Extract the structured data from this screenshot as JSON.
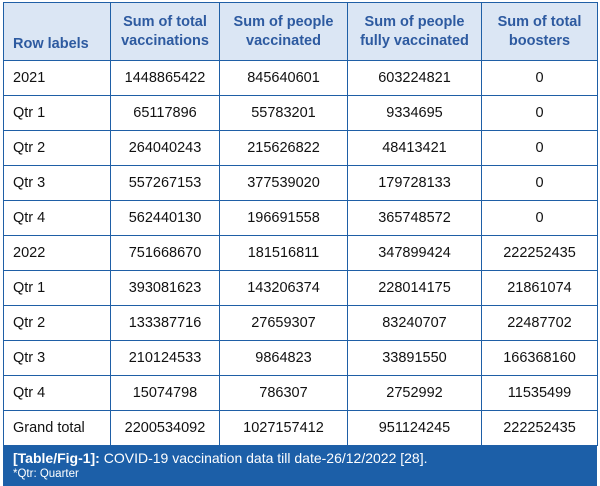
{
  "table": {
    "headers": [
      "Row labels",
      "Sum of total vaccinations",
      "Sum of people vaccinated",
      "Sum of people fully vaccinated",
      "Sum of total boosters"
    ],
    "rows": [
      [
        "2021",
        "1448865422",
        "845640601",
        "603224821",
        "0"
      ],
      [
        "Qtr 1",
        "65117896",
        "55783201",
        "9334695",
        "0"
      ],
      [
        "Qtr 2",
        "264040243",
        "215626822",
        "48413421",
        "0"
      ],
      [
        "Qtr 3",
        "557267153",
        "377539020",
        "179728133",
        "0"
      ],
      [
        "Qtr 4",
        "562440130",
        "196691558",
        "365748572",
        "0"
      ],
      [
        "2022",
        "751668670",
        "181516811",
        "347899424",
        "222252435"
      ],
      [
        "Qtr 1",
        "393081623",
        "143206374",
        "228014175",
        "21861074"
      ],
      [
        "Qtr 2",
        "133387716",
        "27659307",
        "83240707",
        "22487702"
      ],
      [
        "Qtr 3",
        "210124533",
        "9864823",
        "33891550",
        "166368160"
      ],
      [
        "Qtr 4",
        "15074798",
        "786307",
        "2752992",
        "11535499"
      ],
      [
        "Grand total",
        "2200534092",
        "1027157412",
        "951124245",
        "222252435"
      ]
    ]
  },
  "caption": {
    "tag": "[Table/Fig-1]:",
    "text": " COVID-19 vaccination data till date-26/12/2022 [28].",
    "footnote": "*Qtr: Quarter"
  },
  "colors": {
    "header_bg": "#dbe6f4",
    "header_text": "#2d5aa0",
    "border": "#1f5fa6",
    "caption_bg": "#1c5fa8"
  }
}
